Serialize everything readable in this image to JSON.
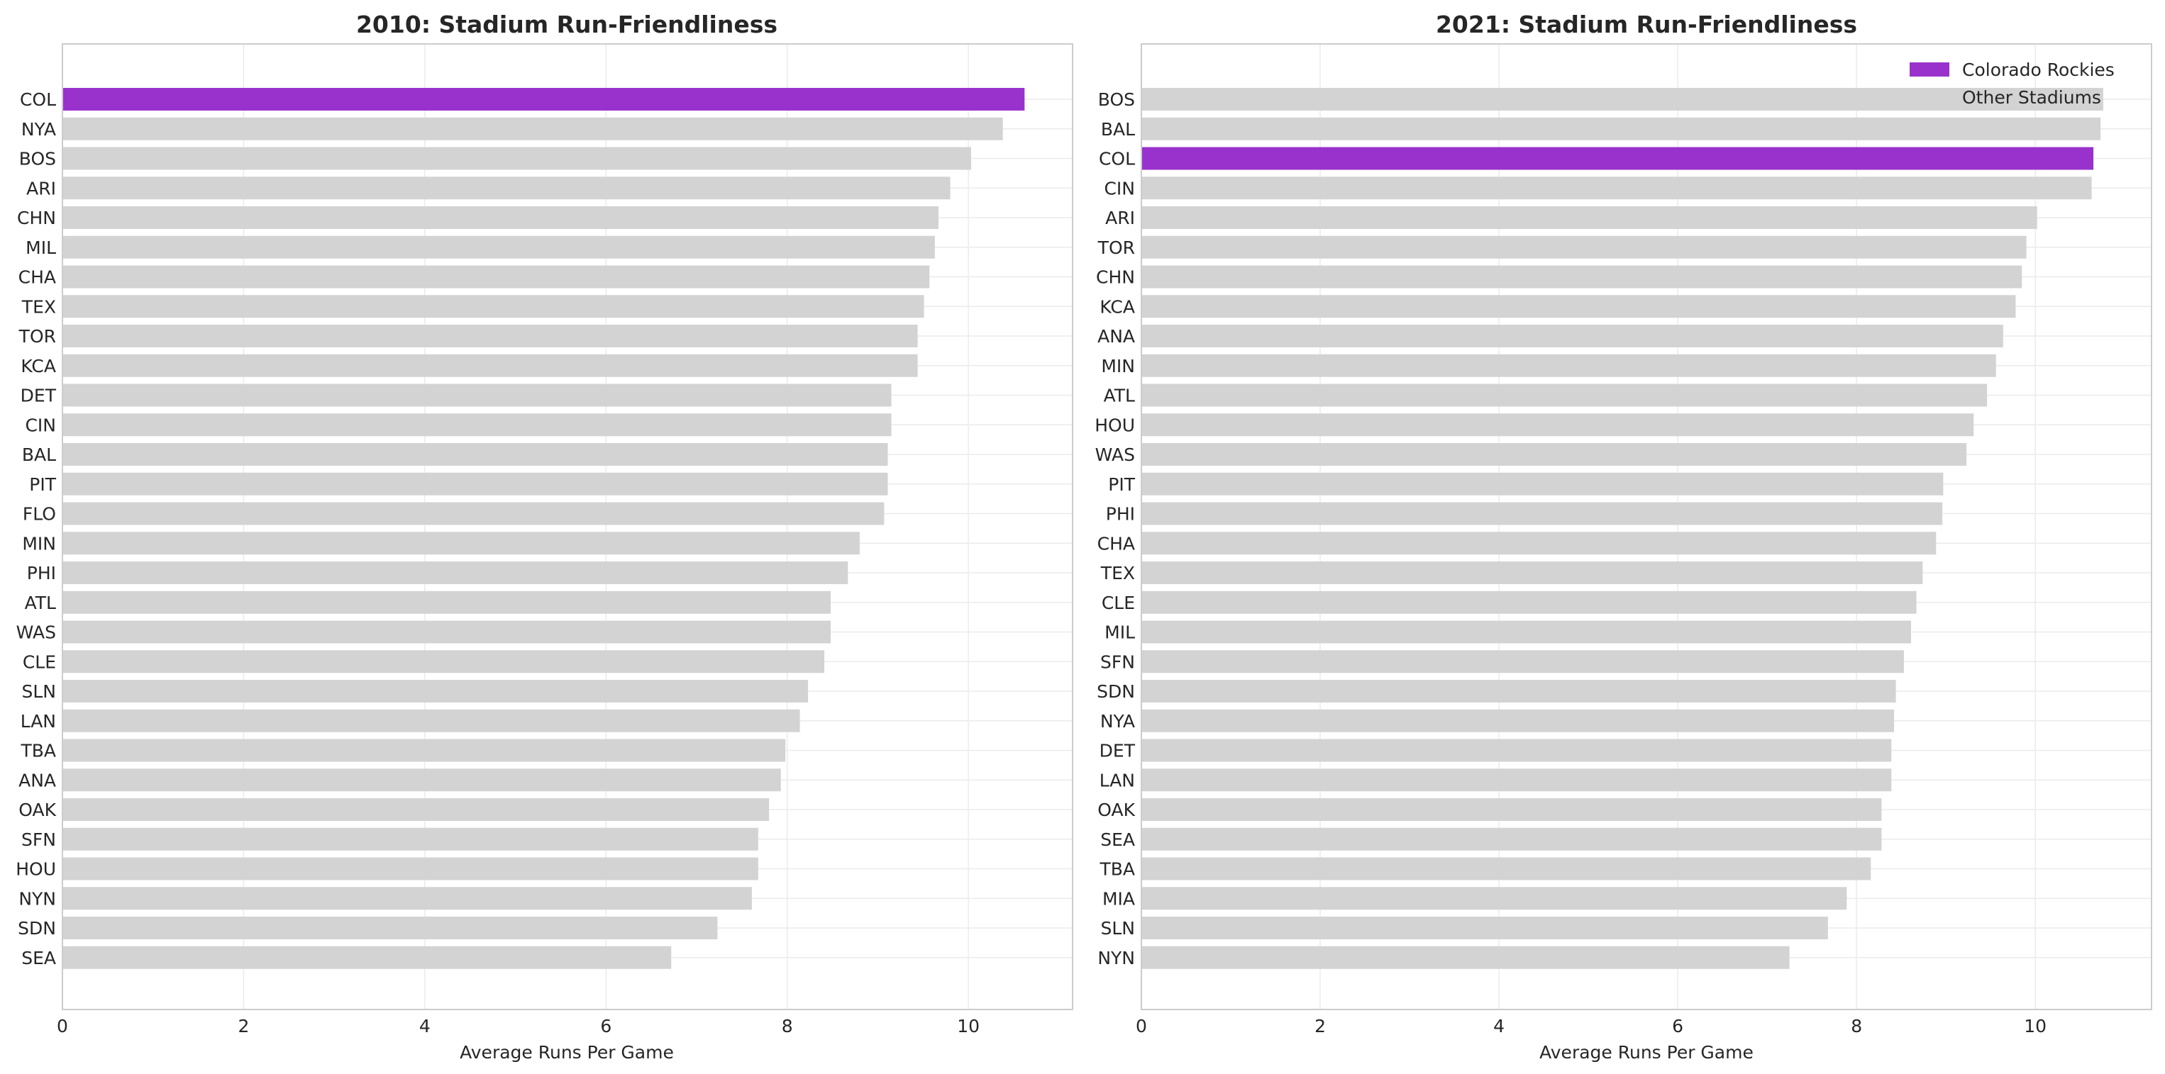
{
  "chart_data": [
    {
      "type": "bar",
      "orientation": "horizontal",
      "title": "2010: Stadium Run-Friendliness",
      "xlabel": "Average Runs Per Game",
      "ylabel": "",
      "xlim": [
        0,
        11.15
      ],
      "xticks": [
        0,
        2,
        4,
        6,
        8,
        10
      ],
      "grid": true,
      "highlight_category": "COL",
      "categories": [
        "COL",
        "NYA",
        "BOS",
        "ARI",
        "CHN",
        "MIL",
        "CHA",
        "TEX",
        "TOR",
        "KCA",
        "DET",
        "CIN",
        "BAL",
        "PIT",
        "FLO",
        "MIN",
        "PHI",
        "ATL",
        "WAS",
        "CLE",
        "SLN",
        "LAN",
        "TBA",
        "ANA",
        "OAK",
        "SFN",
        "HOU",
        "NYN",
        "SDN",
        "SEA"
      ],
      "values": [
        10.62,
        10.38,
        10.03,
        9.8,
        9.67,
        9.63,
        9.57,
        9.51,
        9.44,
        9.44,
        9.15,
        9.15,
        9.11,
        9.11,
        9.07,
        8.8,
        8.67,
        8.48,
        8.48,
        8.41,
        8.23,
        8.14,
        7.98,
        7.93,
        7.8,
        7.68,
        7.68,
        7.61,
        7.23,
        6.72
      ]
    },
    {
      "type": "bar",
      "orientation": "horizontal",
      "title": "2021: Stadium Run-Friendliness",
      "xlabel": "Average Runs Per Game",
      "ylabel": "",
      "xlim": [
        0,
        11.3
      ],
      "xticks": [
        0,
        2,
        4,
        6,
        8,
        10
      ],
      "grid": true,
      "highlight_category": "COL",
      "legend": {
        "placement": "top-right",
        "entries": [
          {
            "label": "Colorado Rockies",
            "color": "#9932CC"
          },
          {
            "label": "Other Stadiums",
            "color": "#D3D3D3"
          }
        ]
      },
      "categories": [
        "BOS",
        "BAL",
        "COL",
        "CIN",
        "ARI",
        "TOR",
        "CHN",
        "KCA",
        "ANA",
        "MIN",
        "ATL",
        "HOU",
        "WAS",
        "PIT",
        "PHI",
        "CHA",
        "TEX",
        "CLE",
        "MIL",
        "SFN",
        "SDN",
        "NYA",
        "DET",
        "LAN",
        "OAK",
        "SEA",
        "TBA",
        "MIA",
        "SLN",
        "NYN"
      ],
      "values": [
        10.76,
        10.73,
        10.65,
        10.63,
        10.02,
        9.9,
        9.85,
        9.78,
        9.64,
        9.56,
        9.46,
        9.31,
        9.23,
        8.97,
        8.96,
        8.89,
        8.74,
        8.67,
        8.61,
        8.53,
        8.44,
        8.42,
        8.39,
        8.39,
        8.28,
        8.28,
        8.16,
        7.89,
        7.68,
        7.25
      ]
    }
  ],
  "colors": {
    "highlight": "#9932CC",
    "other": "#D3D3D3",
    "grid": "#EBEBEB",
    "frame": "#CCCCCC",
    "text": "#262626"
  }
}
